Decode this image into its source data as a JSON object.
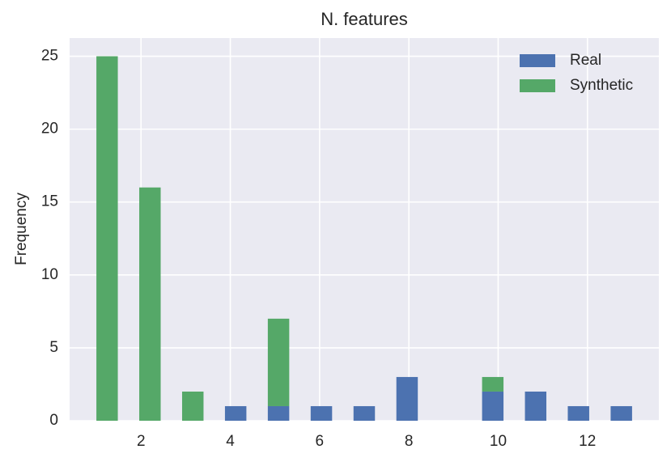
{
  "chart_data": {
    "type": "histogram",
    "title": "N. features",
    "y_label": "Frequency",
    "bins": [
      1,
      1.48,
      1.96,
      2.44,
      2.92,
      3.4,
      3.88,
      4.36,
      4.84,
      5.32,
      5.8,
      6.28,
      6.76,
      7.24,
      7.72,
      8.2,
      8.68,
      9.16,
      9.64,
      10.12,
      10.6,
      11.08,
      11.56,
      12.04,
      12.52,
      13
    ],
    "stacked": true,
    "series": [
      {
        "name": "Real",
        "color": "#4c72b0",
        "values": [
          0,
          0,
          0,
          0,
          0,
          0,
          1,
          0,
          1,
          0,
          1,
          0,
          1,
          0,
          3,
          0,
          0,
          0,
          2,
          0,
          2,
          0,
          1,
          0,
          1
        ]
      },
      {
        "name": "Synthetic",
        "color": "#55a868",
        "values": [
          25,
          0,
          16,
          0,
          2,
          0,
          0,
          0,
          6,
          0,
          0,
          0,
          0,
          0,
          0,
          0,
          0,
          0,
          1,
          0,
          0,
          0,
          0,
          0,
          0
        ]
      }
    ],
    "xlim": [
      0.4,
      13.6
    ],
    "ylim": [
      0,
      26.25
    ],
    "xticks": [
      2,
      4,
      6,
      8,
      10,
      12
    ],
    "yticks": [
      0,
      5,
      10,
      15,
      20,
      25
    ],
    "grid": true,
    "legend": "upper right"
  }
}
